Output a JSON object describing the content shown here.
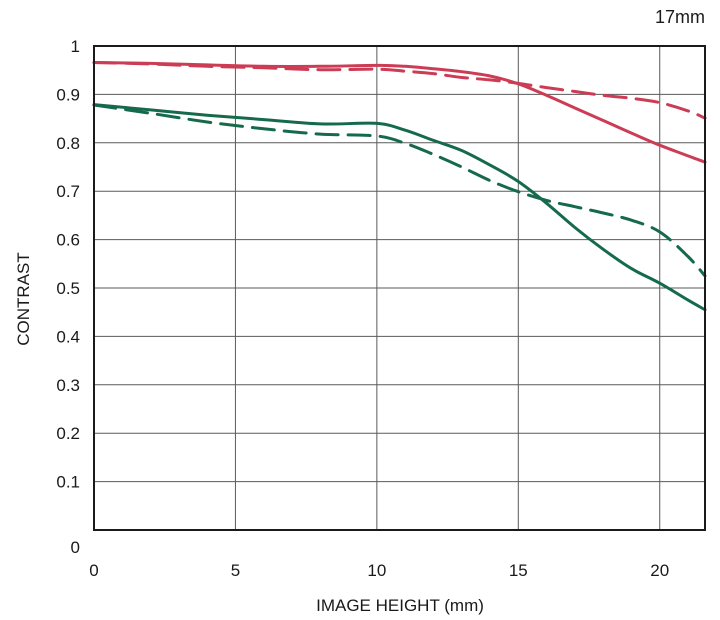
{
  "chart_data": {
    "type": "line",
    "title": "17mm",
    "xlabel": "IMAGE HEIGHT (mm)",
    "ylabel": "CONTRAST",
    "xlim": [
      0,
      21.6
    ],
    "ylim": [
      0,
      1
    ],
    "grid": true,
    "x_ticks": [
      "0",
      "5",
      "10",
      "15",
      "20"
    ],
    "y_ticks": [
      "0",
      "0.1",
      "0.2",
      "0.3",
      "0.4",
      "0.5",
      "0.6",
      "0.7",
      "0.8",
      "0.9",
      "1"
    ],
    "series": [
      {
        "color": "#cc3d55",
        "style": "solid",
        "x": [
          0,
          2,
          4,
          6,
          8,
          10,
          11,
          12,
          13,
          14,
          15,
          16,
          17,
          18,
          19,
          20,
          21,
          21.6
        ],
        "y": [
          0.966,
          0.964,
          0.961,
          0.958,
          0.958,
          0.96,
          0.958,
          0.953,
          0.947,
          0.938,
          0.922,
          0.898,
          0.872,
          0.846,
          0.82,
          0.795,
          0.773,
          0.76
        ]
      },
      {
        "color": "#cc3d55",
        "style": "dashed",
        "x": [
          0,
          2,
          4,
          6,
          8,
          10,
          11,
          12,
          13,
          14,
          15,
          16,
          17,
          18,
          19,
          20,
          21,
          21.6
        ],
        "y": [
          0.966,
          0.963,
          0.958,
          0.955,
          0.951,
          0.952,
          0.948,
          0.943,
          0.935,
          0.93,
          0.923,
          0.914,
          0.906,
          0.898,
          0.892,
          0.883,
          0.866,
          0.851
        ]
      },
      {
        "color": "#166a4c",
        "style": "solid",
        "x": [
          0,
          2,
          4,
          6,
          8,
          10,
          11,
          12,
          13,
          14,
          15,
          16,
          17,
          18,
          19,
          20,
          21,
          21.6
        ],
        "y": [
          0.879,
          0.868,
          0.857,
          0.848,
          0.839,
          0.84,
          0.826,
          0.805,
          0.784,
          0.754,
          0.72,
          0.675,
          0.625,
          0.58,
          0.54,
          0.51,
          0.475,
          0.455
        ]
      },
      {
        "color": "#166a4c",
        "style": "dashed",
        "x": [
          0,
          2,
          4,
          6,
          8,
          10,
          11,
          12,
          13,
          14,
          15,
          16,
          17,
          18,
          19,
          20,
          21,
          21.6
        ],
        "y": [
          0.878,
          0.861,
          0.843,
          0.829,
          0.818,
          0.814,
          0.799,
          0.776,
          0.75,
          0.722,
          0.699,
          0.681,
          0.668,
          0.655,
          0.64,
          0.616,
          0.565,
          0.525
        ]
      }
    ]
  }
}
